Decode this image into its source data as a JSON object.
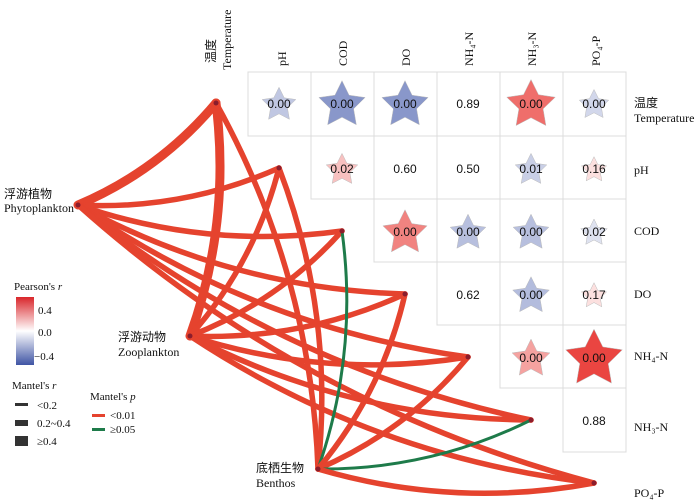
{
  "variables": {
    "temp_zh": "温度",
    "temp_en": "Temperature",
    "pH": "pH",
    "COD": "COD",
    "DO": "DO",
    "NH4": "NH₄-N",
    "NH3": "NH₃-N",
    "PO4": "PO₄-P"
  },
  "groups": {
    "phyto_zh": "浮游植物",
    "phyto_en": "Phytoplankton",
    "zoo_zh": "浮游动物",
    "zoo_en": "Zooplankton",
    "benthos_zh": "底栖生物",
    "benthos_en": "Benthos"
  },
  "matrix": [
    {
      "row": "Temperature",
      "col": "pH",
      "label": "0.00",
      "r": -0.35
    },
    {
      "row": "Temperature",
      "col": "COD",
      "label": "0.00",
      "r": -0.65
    },
    {
      "row": "Temperature",
      "col": "DO",
      "label": "0.00",
      "r": -0.65
    },
    {
      "row": "Temperature",
      "col": "NH4-N",
      "label": "0.89",
      "r": 0.0
    },
    {
      "row": "Temperature",
      "col": "NH3-N",
      "label": "0.00",
      "r": 0.7
    },
    {
      "row": "Temperature",
      "col": "PO4-P",
      "label": "0.00",
      "r": -0.25
    },
    {
      "row": "pH",
      "col": "COD",
      "label": "0.02",
      "r": 0.3
    },
    {
      "row": "pH",
      "col": "DO",
      "label": "0.60",
      "r": 0.0
    },
    {
      "row": "pH",
      "col": "NH4-N",
      "label": "0.50",
      "r": 0.0
    },
    {
      "row": "pH",
      "col": "NH3-N",
      "label": "0.01",
      "r": -0.3
    },
    {
      "row": "pH",
      "col": "PO4-P",
      "label": "0.16",
      "r": 0.15
    },
    {
      "row": "COD",
      "col": "DO",
      "label": "0.00",
      "r": 0.6
    },
    {
      "row": "COD",
      "col": "NH4-N",
      "label": "0.00",
      "r": -0.4
    },
    {
      "row": "COD",
      "col": "NH3-N",
      "label": "0.00",
      "r": -0.4
    },
    {
      "row": "COD",
      "col": "PO4-P",
      "label": "0.02",
      "r": -0.18
    },
    {
      "row": "DO",
      "col": "NH4-N",
      "label": "0.62",
      "r": 0.0
    },
    {
      "row": "DO",
      "col": "NH3-N",
      "label": "0.00",
      "r": -0.42
    },
    {
      "row": "DO",
      "col": "PO4-P",
      "label": "0.17",
      "r": 0.15
    },
    {
      "row": "NH4-N",
      "col": "NH3-N",
      "label": "0.00",
      "r": 0.45
    },
    {
      "row": "NH4-N",
      "col": "PO4-P",
      "label": "0.00",
      "r": 0.9
    },
    {
      "row": "NH3-N",
      "col": "PO4-P",
      "label": "0.88",
      "r": 0.0
    }
  ],
  "links": [
    {
      "from": "Phytoplankton",
      "to": "Temperature",
      "mantel_r": 0.4,
      "p": "<0.01"
    },
    {
      "from": "Phytoplankton",
      "to": "pH",
      "mantel_r": 0.2,
      "p": "<0.01"
    },
    {
      "from": "Phytoplankton",
      "to": "COD",
      "mantel_r": 0.3,
      "p": "<0.01"
    },
    {
      "from": "Phytoplankton",
      "to": "DO",
      "mantel_r": 0.3,
      "p": "<0.01"
    },
    {
      "from": "Phytoplankton",
      "to": "NH4-N",
      "mantel_r": 0.3,
      "p": "<0.01"
    },
    {
      "from": "Phytoplankton",
      "to": "NH3-N",
      "mantel_r": 0.3,
      "p": "<0.01"
    },
    {
      "from": "Phytoplankton",
      "to": "PO4-P",
      "mantel_r": 0.3,
      "p": "<0.01"
    },
    {
      "from": "Zooplankton",
      "to": "Temperature",
      "mantel_r": 0.4,
      "p": "<0.01"
    },
    {
      "from": "Zooplankton",
      "to": "pH",
      "mantel_r": 0.2,
      "p": "<0.01"
    },
    {
      "from": "Zooplankton",
      "to": "COD",
      "mantel_r": 0.3,
      "p": "<0.01"
    },
    {
      "from": "Zooplankton",
      "to": "DO",
      "mantel_r": 0.2,
      "p": "<0.01"
    },
    {
      "from": "Zooplankton",
      "to": "NH4-N",
      "mantel_r": 0.3,
      "p": "<0.01"
    },
    {
      "from": "Zooplankton",
      "to": "NH3-N",
      "mantel_r": 0.3,
      "p": "<0.01"
    },
    {
      "from": "Zooplankton",
      "to": "PO4-P",
      "mantel_r": 0.3,
      "p": "<0.01"
    },
    {
      "from": "Benthos",
      "to": "Temperature",
      "mantel_r": 0.2,
      "p": "<0.01"
    },
    {
      "from": "Benthos",
      "to": "pH",
      "mantel_r": 0.2,
      "p": "<0.01"
    },
    {
      "from": "Benthos",
      "to": "COD",
      "mantel_r": 0.1,
      "p": ">=0.05"
    },
    {
      "from": "Benthos",
      "to": "DO",
      "mantel_r": 0.2,
      "p": "<0.01"
    },
    {
      "from": "Benthos",
      "to": "NH4-N",
      "mantel_r": 0.3,
      "p": "<0.01"
    },
    {
      "from": "Benthos",
      "to": "NH3-N",
      "mantel_r": 0.1,
      "p": ">=0.05"
    },
    {
      "from": "Benthos",
      "to": "PO4-P",
      "mantel_r": 0.3,
      "p": "<0.01"
    }
  ],
  "legend": {
    "pearson_title_a": "Pearson's ",
    "pearson_title_b": "r",
    "pearson_ticks": [
      "0.4",
      "0.0",
      "−0.4"
    ],
    "mantel_r_title_a": "Mantel's ",
    "mantel_r_title_b": "r",
    "mantel_r_items": [
      "<0.2",
      "0.2~0.4",
      "≥0.4"
    ],
    "mantel_p_title_a": "Mantel's ",
    "mantel_p_title_b": "p",
    "mantel_p_items": [
      "<0.01",
      "≥0.05"
    ]
  },
  "colors": {
    "positive": "#e8302c",
    "negative": "#4a5fad",
    "neutral": "#ffffff",
    "sig_link": "#e5432e",
    "nonsig_link": "#1e7b4a",
    "grid": "#dcdcdc"
  }
}
